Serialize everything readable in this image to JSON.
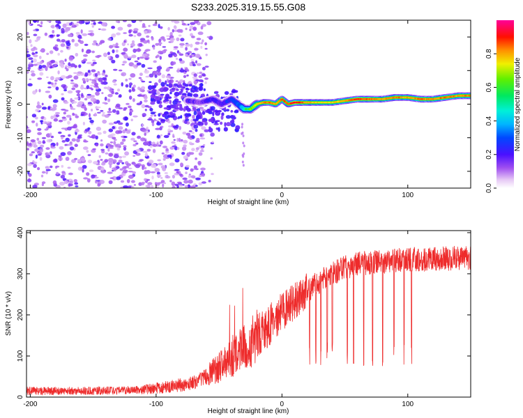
{
  "title": "S233.2025.319.15.55.G08",
  "colors": {
    "snr_line": "#ee2b2b",
    "axis": "#000000",
    "background": "#ffffff"
  },
  "chart_data": [
    {
      "type": "heatmap",
      "name": "spectrogram",
      "xlabel": "Height of straight line (km)",
      "ylabel": "Frequency (Hz)",
      "xlim": [
        -203,
        150
      ],
      "ylim": [
        -25,
        25
      ],
      "xticks": [
        -200,
        -100,
        0,
        100
      ],
      "yticks": [
        -20,
        -10,
        0,
        10,
        20
      ],
      "colorbar": {
        "label": "Normalized spectral amplitude",
        "range": [
          0,
          1
        ],
        "ticks": [
          0.0,
          0.2,
          0.4,
          0.6,
          0.8
        ],
        "tick_labels": [
          "0.0",
          "0.2",
          "0.4",
          "0.6",
          "0.8"
        ]
      },
      "signal_track": {
        "description_values_only": true,
        "x": [
          -75,
          -65,
          -55,
          -48,
          -40,
          -35,
          -30,
          -25,
          -20,
          -15,
          -10,
          -5,
          0,
          5,
          10,
          20,
          30,
          40,
          50,
          60,
          70,
          80,
          90,
          100,
          110,
          120,
          130,
          140,
          150
        ],
        "freq": [
          1,
          0.5,
          1.5,
          0,
          1.5,
          0,
          -1.5,
          -1.5,
          0,
          0.5,
          0.5,
          0,
          1.5,
          0,
          0.5,
          0.5,
          0.5,
          0.5,
          1,
          1.5,
          1.5,
          1.5,
          2,
          2,
          1.5,
          1.5,
          2,
          2.5,
          2.5
        ],
        "amplitude": [
          0.25,
          0.2,
          0.3,
          0.25,
          0.35,
          0.4,
          0.55,
          0.65,
          0.75,
          0.8,
          0.85,
          0.8,
          0.85,
          0.85,
          0.95,
          0.8,
          0.75,
          0.75,
          0.8,
          0.9,
          0.85,
          0.8,
          0.85,
          0.8,
          0.85,
          0.8,
          0.85,
          0.8,
          0.85
        ]
      }
    },
    {
      "type": "line",
      "name": "snr",
      "xlabel": "Height of straight line (km)",
      "ylabel": "SNR (10 * v/v)",
      "xlim": [
        -203,
        150
      ],
      "ylim": [
        0,
        405
      ],
      "xticks": [
        -200,
        -100,
        0,
        100
      ],
      "yticks": [
        0,
        100,
        200,
        300,
        400
      ],
      "trend": {
        "x": [
          -203,
          -150,
          -110,
          -90,
          -70,
          -60,
          -50,
          -40,
          -30,
          -20,
          -10,
          0,
          10,
          20,
          30,
          40,
          50,
          60,
          80,
          100,
          120,
          150
        ],
        "y": [
          15,
          15,
          18,
          25,
          35,
          50,
          70,
          95,
          120,
          145,
          175,
          205,
          235,
          260,
          280,
          300,
          315,
          325,
          330,
          335,
          335,
          340
        ]
      },
      "dropouts_x": [
        22,
        27,
        31,
        36,
        40,
        52,
        57,
        65,
        72,
        80,
        89,
        97,
        103
      ]
    }
  ]
}
